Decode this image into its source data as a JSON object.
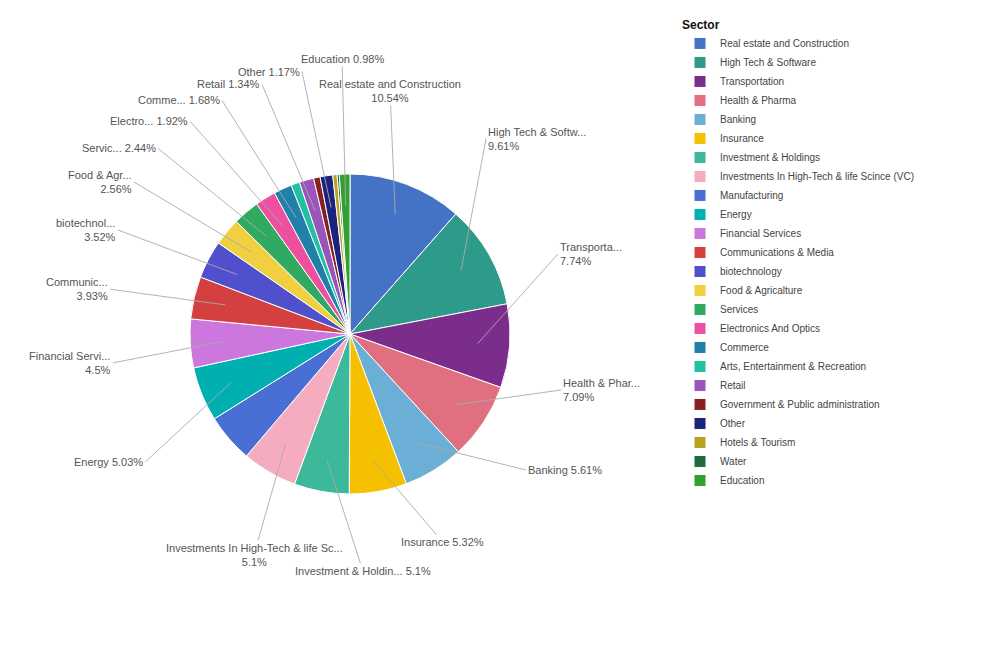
{
  "chart_data": {
    "type": "pie",
    "legend_title": "Sector",
    "legend": "upper right",
    "categories": [
      "Real estate and Construction",
      "High Tech & Software",
      "Transportation",
      "Health & Pharma",
      "Banking",
      "Insurance",
      "Investment & Holdings",
      "Investments In High-Tech & life Scince (VC)",
      "Manufacturing",
      "Energy",
      "Financial Services",
      "Communications & Media",
      "biotechnology",
      "Food & Agricalture",
      "Services",
      "Electronics And Optics",
      "Commerce",
      "Arts, Entertainment & Recreation",
      "Retail",
      "Government & Public administration",
      "Other",
      "Hotels & Tourism",
      "Water",
      "Education"
    ],
    "values": [
      10.54,
      9.61,
      7.74,
      7.09,
      5.61,
      5.32,
      5.1,
      5.1,
      4.5,
      5.03,
      4.5,
      3.93,
      3.52,
      2.56,
      2.44,
      1.92,
      1.68,
      0.8,
      1.34,
      0.6,
      1.17,
      0.4,
      0.2,
      0.98
    ],
    "colors": [
      "#4472C4",
      "#2E9B8A",
      "#7B2D8B",
      "#E07080",
      "#6BAED6",
      "#F4C000",
      "#3CB89A",
      "#F4ACBE",
      "#4A6FD4",
      "#00B0B0",
      "#CC77DD",
      "#D44040",
      "#5050CC",
      "#F0D040",
      "#30AA60",
      "#EE50A0",
      "#2080AA",
      "#20C0A0",
      "#9955BB",
      "#882020",
      "#1A237E",
      "#B8A020",
      "#206840",
      "#30A030"
    ],
    "annotations": [
      {
        "category": "Real estate and Construction",
        "text": "Real estate and Construction\n10.54%"
      },
      {
        "category": "High Tech & Software",
        "text": "High Tech & Softw...\n9.61%"
      },
      {
        "category": "Transportation",
        "text": "Transporta...\n7.74%"
      },
      {
        "category": "Health & Pharma",
        "text": "Health & Phar...\n7.09%"
      },
      {
        "category": "Banking",
        "text": "Banking 5.61%"
      },
      {
        "category": "Insurance",
        "text": "Insurance 5.32%"
      },
      {
        "category": "Investment & Holdings",
        "text": "Investment & Holdin... 5.1%"
      },
      {
        "category": "Investments In High-Tech & life Scince (VC)",
        "text": "Investments In High-Tech & life Sc...\n5.1%"
      },
      {
        "category": "Energy",
        "text": "Energy 5.03%"
      },
      {
        "category": "Financial Services",
        "text": "Financial Servi...\n4.5%"
      },
      {
        "category": "Communications & Media",
        "text": "Communic...\n3.93%"
      },
      {
        "category": "biotechnology",
        "text": "biotechnol...\n3.52%"
      },
      {
        "category": "Food & Agricalture",
        "text": "Food & Agr...\n2.56%"
      },
      {
        "category": "Services",
        "text": "Servic... 2.44%"
      },
      {
        "category": "Electronics And Optics",
        "text": "Electro... 1.92%"
      },
      {
        "category": "Commerce",
        "text": "Comme... 1.68%"
      },
      {
        "category": "Retail",
        "text": "Retail 1.34%"
      },
      {
        "category": "Other",
        "text": "Other 1.17%"
      },
      {
        "category": "Education",
        "text": "Education 0.98%"
      }
    ]
  }
}
